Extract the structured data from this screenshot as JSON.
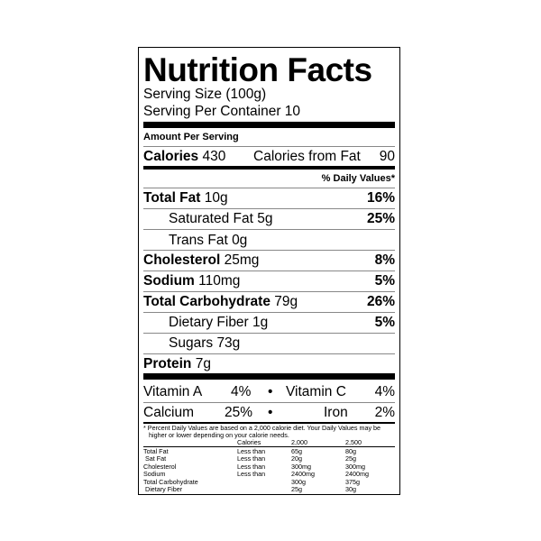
{
  "title": "Nutrition Facts",
  "serving_size": "Serving Size (100g)",
  "servings_per_container": "Serving Per Container 10",
  "amount_per_serving": "Amount Per Serving",
  "calories": {
    "label": "Calories",
    "value": "430",
    "from_fat_label": "Calories from Fat",
    "from_fat_value": "90"
  },
  "daily_values_header": "% Daily Values*",
  "nutrients": [
    {
      "name": "Total Fat",
      "amount": "10g",
      "dv": "16%"
    },
    {
      "name": "Saturated Fat",
      "amount": "5g",
      "dv": "25%"
    },
    {
      "name": "Trans Fat",
      "amount": "0g",
      "dv": ""
    },
    {
      "name": "Cholesterol",
      "amount": "25mg",
      "dv": "8%"
    },
    {
      "name": "Sodium",
      "amount": "110mg",
      "dv": "5%"
    },
    {
      "name": "Total Carbohydrate",
      "amount": "79g",
      "dv": "26%"
    },
    {
      "name": "Dietary Fiber",
      "amount": " 1g",
      "dv": "5%"
    },
    {
      "name": "Sugars",
      "amount": "73g",
      "dv": ""
    },
    {
      "name": "Protein",
      "amount": "7g",
      "dv": ""
    }
  ],
  "vitamins": [
    {
      "name": "Vitamin A",
      "dv": "4%"
    },
    {
      "name": "Vitamin C",
      "dv": "4%"
    },
    {
      "name": "Calcium",
      "dv": "25%"
    },
    {
      "name": "Iron",
      "dv": "2%"
    }
  ],
  "bullet": "•",
  "footnote": {
    "line1": "* Percent Daily Values are based on a 2,000 calorie diet. Your Daily Values may be",
    "line2": "higher or lower depending on your calorie needs.",
    "headers": [
      "Calories",
      "2,000",
      "2,500"
    ],
    "rows": [
      [
        "Total Fat",
        "Less than",
        "65g",
        "80g"
      ],
      [
        " Sat Fat",
        "Less than",
        "20g",
        "25g"
      ],
      [
        "Cholesterol",
        "Less than",
        "300mg",
        "300mg"
      ],
      [
        "Sodium",
        "Less than",
        "2400mg",
        "2400mg"
      ],
      [
        "Total Carbohydrate",
        "",
        "300g",
        "375g"
      ],
      [
        " Dietary Fiber",
        "",
        "25g",
        "30g"
      ]
    ]
  }
}
